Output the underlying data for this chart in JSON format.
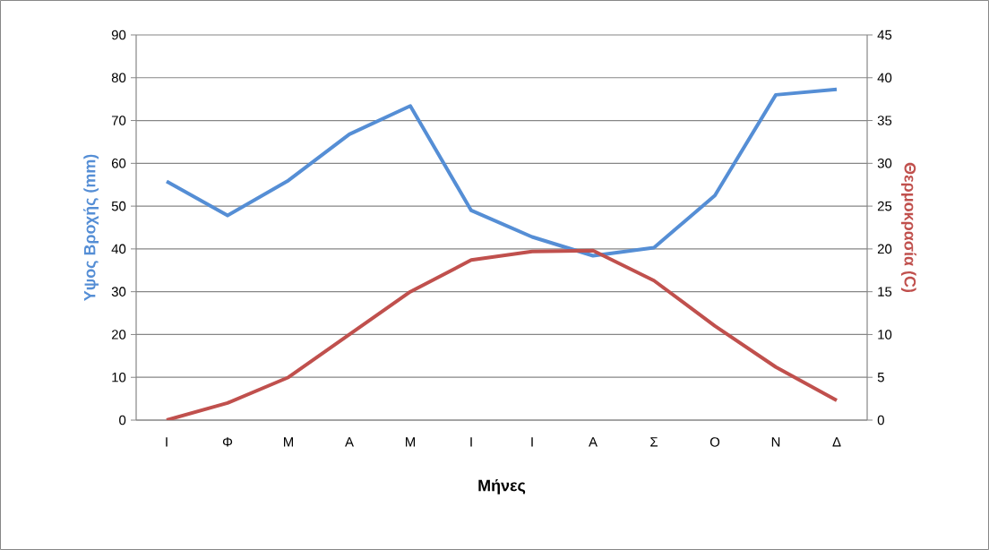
{
  "chart_data": {
    "type": "line",
    "xlabel": "Μήνες",
    "ylabel": "Υψος Βροχής (mm)",
    "y2label": "Θερμοκρασία (C)",
    "categories": [
      "Ι",
      "Φ",
      "Μ",
      "Α",
      "Μ",
      "Ι",
      "Ι",
      "Α",
      "Σ",
      "Ο",
      "Ν",
      "Δ"
    ],
    "series": [
      {
        "color": "#558ed5",
        "values": [
          55.8,
          47.8,
          56,
          66.8,
          73.4,
          49,
          42.8,
          38.4,
          40.3,
          52.5,
          76,
          77.3
        ]
      },
      {
        "color": "#c0504d",
        "axis": "y2",
        "values": [
          0,
          2,
          5,
          10,
          15,
          18.7,
          19.7,
          19.8,
          16.3,
          11,
          6.2,
          2.3
        ]
      }
    ],
    "ylim": [
      0,
      90
    ],
    "yticks": [
      0,
      10,
      20,
      30,
      40,
      50,
      60,
      70,
      80,
      90
    ],
    "y2lim": [
      0,
      45
    ],
    "y2ticks": [
      0,
      5,
      10,
      15,
      20,
      25,
      30,
      35,
      40,
      45
    ],
    "grid": "y"
  }
}
